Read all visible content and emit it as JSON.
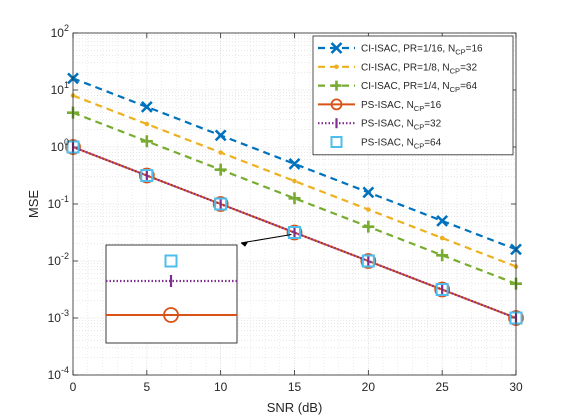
{
  "chart_data": {
    "type": "line",
    "xlabel": "SNR (dB)",
    "ylabel": "MSE",
    "x": [
      0,
      5,
      10,
      15,
      20,
      25,
      30
    ],
    "xlim": [
      0,
      30
    ],
    "ylim_log10": [
      -4,
      2
    ],
    "y_scale": "log",
    "grid": "on (major and minor)",
    "legend_position": "top-right",
    "x_ticks": [
      "0",
      "5",
      "10",
      "15",
      "20",
      "25",
      "30"
    ],
    "y_tick_mantissa": "10",
    "y_tick_exponents": [
      "-4",
      "-3",
      "-2",
      "-1",
      "0",
      "1",
      "2"
    ],
    "series": [
      {
        "name": "CI-ISAC, PR=1/16, N",
        "sub": "CP",
        "suffix": "=16",
        "color": "#0072bd",
        "dash": "dashed",
        "marker": "x",
        "values": [
          16,
          5.06,
          1.6,
          0.506,
          0.16,
          0.0506,
          0.016
        ]
      },
      {
        "name": "CI-ISAC, PR=1/8, N",
        "sub": "CP",
        "suffix": "=32",
        "color": "#edb120",
        "dash": "dashed",
        "marker": "dot",
        "values": [
          8,
          2.53,
          0.8,
          0.253,
          0.08,
          0.0253,
          0.008
        ]
      },
      {
        "name": "CI-ISAC, PR=1/4, N",
        "sub": "CP",
        "suffix": "=64",
        "color": "#77ac30",
        "dash": "dashed",
        "marker": "plus",
        "values": [
          4,
          1.26,
          0.4,
          0.126,
          0.04,
          0.0126,
          0.004
        ]
      },
      {
        "name": "PS-ISAC, N",
        "sub": "CP",
        "suffix": "=16",
        "color": "#d95319",
        "dash": "solid",
        "marker": "circle",
        "values": [
          1,
          0.316,
          0.1,
          0.0316,
          0.01,
          0.00316,
          0.001
        ]
      },
      {
        "name": "PS-ISAC, N",
        "sub": "CP",
        "suffix": "=32",
        "color": "#7e2f8e",
        "dash": "dotted",
        "marker": "vbar",
        "values": [
          1,
          0.316,
          0.1,
          0.0316,
          0.01,
          0.00316,
          0.001
        ]
      },
      {
        "name": "PS-ISAC, N",
        "sub": "CP",
        "suffix": "=64",
        "color": "#4dbeee",
        "dash": "none",
        "marker": "square",
        "values": [
          1,
          0.316,
          0.1,
          0.0316,
          0.01,
          0.00316,
          0.001
        ]
      }
    ],
    "inset": {
      "description_zoom_of": "x=15",
      "markers": [
        "square",
        "vbar",
        "circle"
      ]
    }
  }
}
